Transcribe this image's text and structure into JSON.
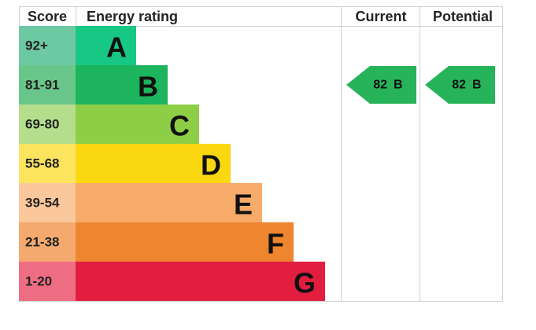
{
  "header": {
    "score": "Score",
    "rating": "Energy rating",
    "current": "Current",
    "potential": "Potential"
  },
  "bands": [
    {
      "score": "92+",
      "letter": "A",
      "color": "#17c784",
      "score_color": "#6cc9a1"
    },
    {
      "score": "81-91",
      "letter": "B",
      "color": "#1cb45c",
      "score_color": "#69c68b"
    },
    {
      "score": "69-80",
      "letter": "C",
      "color": "#8dce46",
      "score_color": "#b4de8c"
    },
    {
      "score": "55-68",
      "letter": "D",
      "color": "#fbd712",
      "score_color": "#fde45f"
    },
    {
      "score": "39-54",
      "letter": "E",
      "color": "#f6ab69",
      "score_color": "#fbc89c"
    },
    {
      "score": "21-38",
      "letter": "F",
      "color": "#ee852f",
      "score_color": "#f4aa6e"
    },
    {
      "score": "1-20",
      "letter": "G",
      "color": "#e31d40",
      "score_color": "#ef6d83"
    }
  ],
  "current": {
    "score": "82",
    "rating": "B",
    "band": 1,
    "color": "#27b35a"
  },
  "potential": {
    "score": "82",
    "rating": "B",
    "band": 1,
    "color": "#27b35a"
  }
}
